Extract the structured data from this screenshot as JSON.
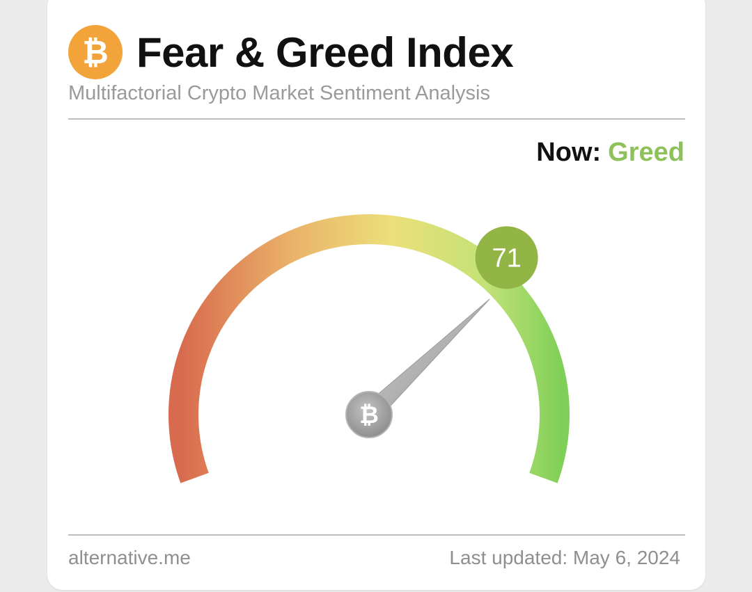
{
  "header": {
    "logo_glyph": "₿",
    "title": "Fear & Greed Index",
    "subtitle": "Multifactorial Crypto Market Sentiment Analysis"
  },
  "status": {
    "label": "Now:",
    "value": "Greed",
    "value_color": "#8fc15a"
  },
  "chart_data": {
    "type": "gauge",
    "min": 0,
    "max": 100,
    "value": 71,
    "value_label": "71",
    "badge_color": "#93b545",
    "hub_glyph": "₿"
  },
  "footer": {
    "source": "alternative.me",
    "updated": "Last updated: May 6, 2024"
  }
}
